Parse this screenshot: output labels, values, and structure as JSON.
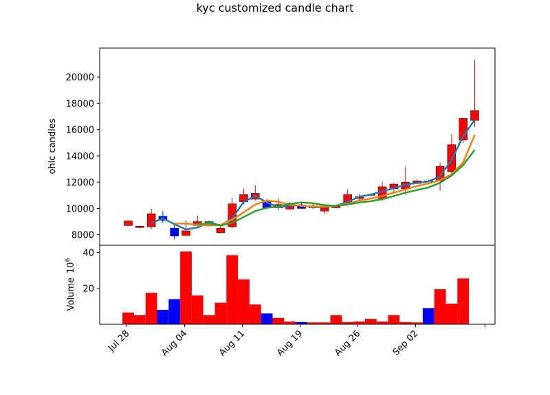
{
  "chart_data": {
    "type": "candlestick",
    "title": "kyc customized candle chart",
    "price_panel": {
      "ylabel": "ohlc candles",
      "ylim": [
        7200,
        22200
      ],
      "yticks": [
        8000,
        10000,
        12000,
        14000,
        16000,
        18000,
        20000
      ],
      "candles": [
        {
          "o": 8700,
          "h": 9100,
          "l": 8650,
          "c": 9050
        },
        {
          "o": 8550,
          "h": 8700,
          "l": 8500,
          "c": 8650
        },
        {
          "o": 8600,
          "h": 10000,
          "l": 8450,
          "c": 9600
        },
        {
          "o": 9400,
          "h": 9800,
          "l": 8900,
          "c": 9100
        },
        {
          "o": 8500,
          "h": 8900,
          "l": 7650,
          "c": 7900
        },
        {
          "o": 7950,
          "h": 9100,
          "l": 7850,
          "c": 8300
        },
        {
          "o": 8700,
          "h": 9450,
          "l": 8600,
          "c": 9000
        },
        {
          "o": 8900,
          "h": 9100,
          "l": 8800,
          "c": 9000
        },
        {
          "o": 8150,
          "h": 8700,
          "l": 8100,
          "c": 8500
        },
        {
          "o": 8600,
          "h": 10800,
          "l": 8500,
          "c": 10350
        },
        {
          "o": 10500,
          "h": 11500,
          "l": 10300,
          "c": 11050
        },
        {
          "o": 10700,
          "h": 11750,
          "l": 10600,
          "c": 11150
        },
        {
          "o": 10500,
          "h": 10700,
          "l": 10000,
          "c": 10050
        },
        {
          "o": 10050,
          "h": 10750,
          "l": 9850,
          "c": 10300
        },
        {
          "o": 9950,
          "h": 10500,
          "l": 9900,
          "c": 10400
        },
        {
          "o": 10250,
          "h": 10450,
          "l": 9950,
          "c": 10000
        },
        {
          "o": 10050,
          "h": 10350,
          "l": 9950,
          "c": 10200
        },
        {
          "o": 9800,
          "h": 10200,
          "l": 9600,
          "c": 10150
        },
        {
          "o": 10050,
          "h": 10300,
          "l": 10000,
          "c": 10250
        },
        {
          "o": 10350,
          "h": 11450,
          "l": 10250,
          "c": 11050
        },
        {
          "o": 10750,
          "h": 11100,
          "l": 10600,
          "c": 10900
        },
        {
          "o": 11000,
          "h": 11150,
          "l": 10900,
          "c": 11050
        },
        {
          "o": 10750,
          "h": 12050,
          "l": 10600,
          "c": 11650
        },
        {
          "o": 11500,
          "h": 11950,
          "l": 11250,
          "c": 11850
        },
        {
          "o": 11500,
          "h": 13150,
          "l": 11050,
          "c": 12000
        },
        {
          "o": 11900,
          "h": 12200,
          "l": 11850,
          "c": 12100
        },
        {
          "o": 12100,
          "h": 12150,
          "l": 12000,
          "c": 12050
        },
        {
          "o": 12100,
          "h": 13500,
          "l": 11350,
          "c": 13200
        },
        {
          "o": 12800,
          "h": 15650,
          "l": 12600,
          "c": 14850
        },
        {
          "o": 15200,
          "h": 16900,
          "l": 15000,
          "c": 16850
        },
        {
          "o": 16700,
          "h": 21300,
          "l": 16200,
          "c": 17450
        }
      ],
      "lines": [
        {
          "color": "#1f77b4",
          "values": [
            null,
            null,
            8900,
            9250,
            8800,
            8400,
            8550,
            8950,
            8700,
            9250,
            10500,
            10950,
            10450,
            10100,
            10200,
            10250,
            10100,
            10100,
            10200,
            10500,
            10900,
            11050,
            11300,
            11550,
            11800,
            11950,
            12050,
            12450,
            13700,
            15500,
            16750
          ]
        },
        {
          "color": "#ff7f0e",
          "values": [
            null,
            null,
            null,
            null,
            8850,
            8850,
            8750,
            8700,
            8750,
            9150,
            9700,
            10300,
            10600,
            10500,
            10300,
            10200,
            10150,
            10150,
            10200,
            10350,
            10600,
            10750,
            10950,
            11200,
            11450,
            11700,
            11900,
            12150,
            12600,
            13500,
            15600
          ]
        },
        {
          "color": "#2ca02c",
          "values": [
            null,
            null,
            null,
            null,
            null,
            null,
            8800,
            8850,
            8700,
            8900,
            9350,
            9800,
            10050,
            10150,
            10350,
            10450,
            10400,
            10250,
            10200,
            10300,
            10450,
            10550,
            10700,
            10950,
            11200,
            11400,
            11600,
            11950,
            12500,
            13300,
            14450
          ]
        }
      ]
    },
    "volume_panel": {
      "ylabel": "Volume",
      "scale_label": "10",
      "scale_exp": "6",
      "ylim": [
        0,
        44
      ],
      "yticks": [
        20,
        40
      ],
      "values": [
        6.5,
        5,
        17.5,
        8,
        14,
        40.5,
        16,
        5,
        12,
        38.5,
        25,
        11,
        6,
        3.5,
        1.5,
        1.2,
        1,
        1,
        5,
        1.2,
        1.5,
        3,
        1.5,
        5,
        1.2,
        1,
        9,
        19.5,
        11.5,
        25.5,
        0
      ]
    },
    "x": {
      "tick_labels": [
        "Jul 28",
        "Aug 04",
        "Aug 11",
        "Aug 19",
        "Aug 26",
        "Sep 02",
        ""
      ],
      "tick_index": [
        0,
        5,
        10,
        15,
        20,
        25,
        31
      ]
    },
    "colors": {
      "up": "#ff0000",
      "down": "#0000ff",
      "axis": "#000000"
    },
    "grid": false
  }
}
